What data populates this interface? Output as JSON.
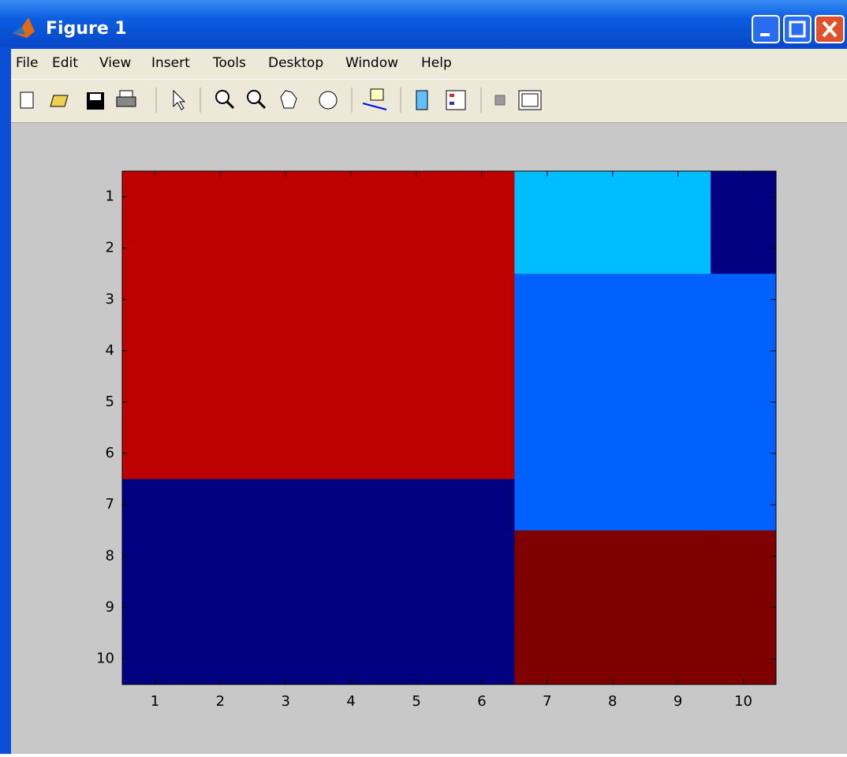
{
  "window": {
    "title": "Figure 1",
    "menu": [
      "File",
      "Edit",
      "View",
      "Insert",
      "Tools",
      "Desktop",
      "Window",
      "Help"
    ]
  },
  "chart_data": {
    "type": "heatmap",
    "colormap": "jet",
    "clim": [
      0,
      1
    ],
    "y_reversed": true,
    "x": [
      1,
      2,
      3,
      4,
      5,
      6,
      7,
      8,
      9,
      10
    ],
    "y": [
      1,
      2,
      3,
      4,
      5,
      6,
      7,
      8,
      9,
      10
    ],
    "values": [
      [
        0.94,
        0.94,
        0.94,
        0.94,
        0.94,
        0.94,
        0.31,
        0.31,
        0.31,
        0
      ],
      [
        0.94,
        0.94,
        0.94,
        0.94,
        0.94,
        0.94,
        0.31,
        0.31,
        0.31,
        0
      ],
      [
        0.94,
        0.94,
        0.94,
        0.94,
        0.94,
        0.94,
        0.22,
        0.22,
        0.22,
        0.22
      ],
      [
        0.94,
        0.94,
        0.94,
        0.94,
        0.94,
        0.94,
        0.22,
        0.22,
        0.22,
        0.22
      ],
      [
        0.94,
        0.94,
        0.94,
        0.94,
        0.94,
        0.94,
        0.22,
        0.22,
        0.22,
        0.22
      ],
      [
        0.94,
        0.94,
        0.94,
        0.94,
        0.94,
        0.94,
        0.22,
        0.22,
        0.22,
        0.22
      ],
      [
        0,
        0,
        0,
        0,
        0,
        0,
        0.22,
        0.22,
        0.22,
        0.22
      ],
      [
        0,
        0,
        0,
        0,
        0,
        0,
        1,
        1,
        1,
        1
      ],
      [
        0,
        0,
        0,
        0,
        0,
        0,
        1,
        1,
        1,
        1
      ],
      [
        0,
        0,
        0,
        0,
        0,
        0,
        1,
        1,
        1,
        1
      ]
    ],
    "xlim": [
      0.5,
      10.5
    ],
    "ylim": [
      0.5,
      10.5
    ],
    "xticks": [
      1,
      2,
      3,
      4,
      5,
      6,
      7,
      8,
      9,
      10
    ],
    "yticks": [
      1,
      2,
      3,
      4,
      5,
      6,
      7,
      8,
      9,
      10
    ]
  }
}
